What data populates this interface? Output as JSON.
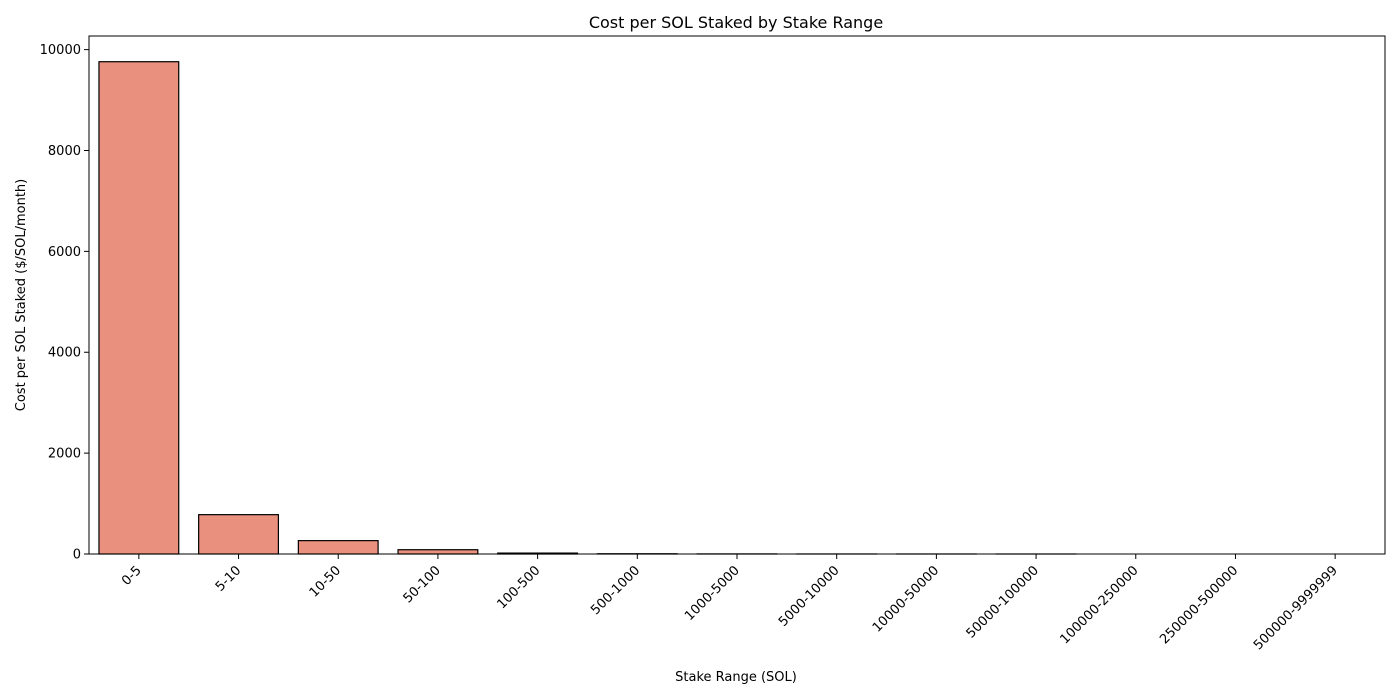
{
  "chart_data": {
    "type": "bar",
    "title": "Cost per SOL Staked by Stake Range",
    "xlabel": "Stake Range (SOL)",
    "ylabel": "Cost per SOL Staked ($/SOL/month)",
    "categories": [
      "0-5",
      "5-10",
      "10-50",
      "50-100",
      "100-500",
      "500-1000",
      "1000-5000",
      "5000-10000",
      "10000-50000",
      "50000-100000",
      "100000-250000",
      "250000-500000",
      "500000-9999999"
    ],
    "values": [
      9760,
      780,
      265,
      85,
      18,
      5,
      2,
      0.8,
      0.3,
      0.1,
      0.05,
      0.02,
      0.01
    ],
    "ylim": [
      0,
      10270
    ],
    "yticks": [
      0,
      2000,
      4000,
      6000,
      8000,
      10000
    ],
    "grid": false,
    "bar_color": "#e9907f",
    "edge_color": "#000000"
  }
}
